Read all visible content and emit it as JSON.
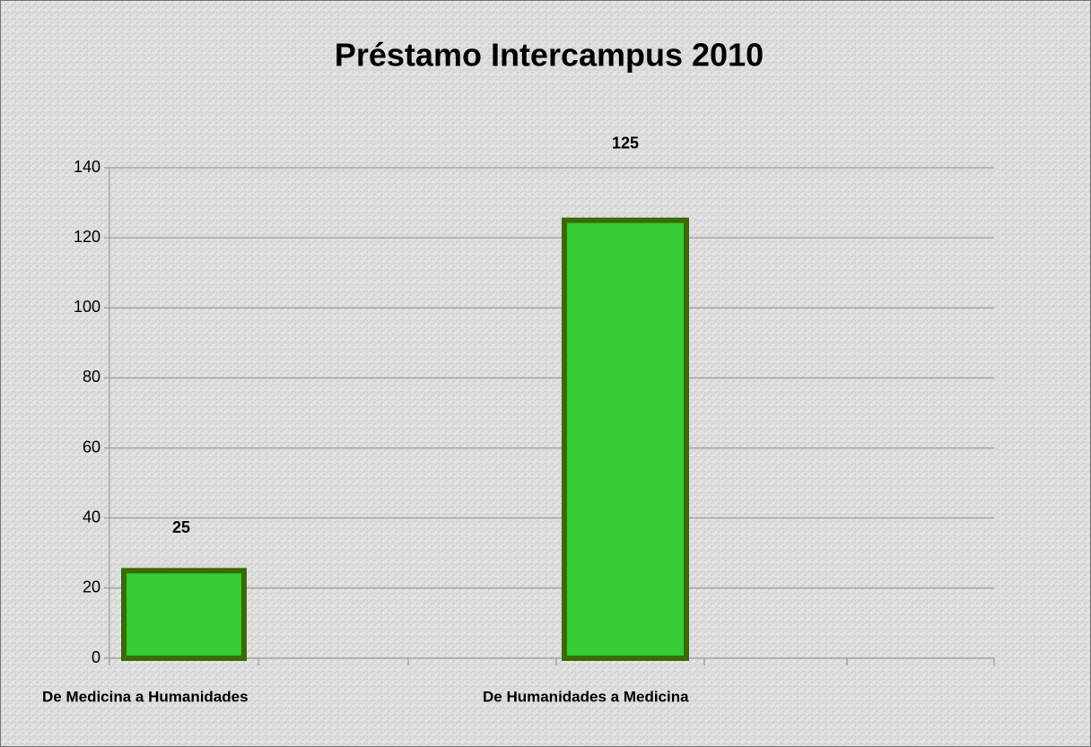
{
  "chart_data": {
    "type": "bar",
    "title": "Préstamo Intercampus 2010",
    "categories": [
      "De Medicina a Humanidades",
      "De Humanidades a Medicina"
    ],
    "values": [
      25,
      125
    ],
    "color": "#33cc33",
    "edge_color": "#3a6a00",
    "ylim": [
      0,
      140
    ],
    "yticks": [
      0,
      20,
      40,
      60,
      80,
      100,
      120,
      140
    ],
    "grid": true
  }
}
